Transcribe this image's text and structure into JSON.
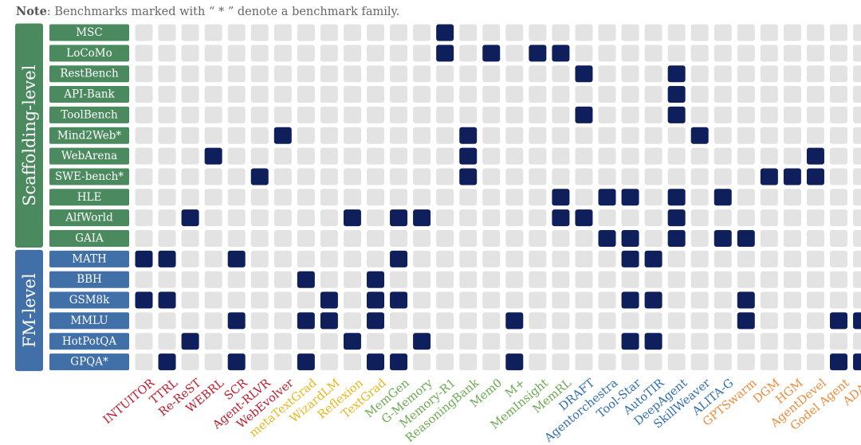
{
  "note": {
    "label": "Note",
    "text": ": Benchmarks marked with “ * ” denote a benchmark family."
  },
  "colors": {
    "cell_empty": "#e3e3e3",
    "cell_filled": "#0f1f5c",
    "group_scaffolding": "#4a8a5e",
    "group_fm": "#416fa8",
    "method_red": "#c0192a",
    "method_yellow": "#e8b618",
    "method_green": "#6aa84f",
    "method_blue": "#2f6db0",
    "method_orange": "#ee8a3c"
  },
  "chart_data": {
    "type": "heatmap",
    "groups": [
      {
        "label": "Scaffolding-level",
        "color": "#4a8a5e",
        "rows": [
          "MSC",
          "LoCoMo",
          "RestBench",
          "API-Bank",
          "ToolBench",
          "Mind2Web*",
          "WebArena",
          "SWE-bench*",
          "HLE",
          "AlfWorld",
          "GAIA"
        ]
      },
      {
        "label": "FM-level",
        "color": "#416fa8",
        "rows": [
          "MATH",
          "BBH",
          "GSM8k",
          "MMLU",
          "HotPotQA",
          "GPQA*"
        ]
      }
    ],
    "columns": [
      {
        "label": "INTUITOR",
        "color": "#c0192a"
      },
      {
        "label": "TTRL",
        "color": "#c0192a"
      },
      {
        "label": "Re-ReST",
        "color": "#c0192a"
      },
      {
        "label": "WEBRL",
        "color": "#c0192a"
      },
      {
        "label": "SCR",
        "color": "#c0192a"
      },
      {
        "label": "Agent-RLVR",
        "color": "#c0192a"
      },
      {
        "label": "WebEvolver",
        "color": "#c0192a"
      },
      {
        "label": "metaTextGrad",
        "color": "#e8b618"
      },
      {
        "label": "WizardLM",
        "color": "#e8b618"
      },
      {
        "label": "Reflexion",
        "color": "#e8b618"
      },
      {
        "label": "TextGrad",
        "color": "#e8b618"
      },
      {
        "label": "MemGen",
        "color": "#6aa84f"
      },
      {
        "label": "G-Memory",
        "color": "#6aa84f"
      },
      {
        "label": "Memory-R1",
        "color": "#6aa84f"
      },
      {
        "label": "ReasoningBank",
        "color": "#6aa84f"
      },
      {
        "label": "Mem0",
        "color": "#6aa84f"
      },
      {
        "label": "M+",
        "color": "#6aa84f"
      },
      {
        "label": "MemInsight",
        "color": "#6aa84f"
      },
      {
        "label": "MemRL",
        "color": "#6aa84f"
      },
      {
        "label": "DRAFT",
        "color": "#2f6db0"
      },
      {
        "label": "Agentorchestra",
        "color": "#2f6db0"
      },
      {
        "label": "Tool-Star",
        "color": "#2f6db0"
      },
      {
        "label": "AutoTIR",
        "color": "#2f6db0"
      },
      {
        "label": "DeepAgent",
        "color": "#2f6db0"
      },
      {
        "label": "SkillWeaver",
        "color": "#2f6db0"
      },
      {
        "label": "ALITA-G",
        "color": "#2f6db0"
      },
      {
        "label": "GPTSwarm",
        "color": "#ee8a3c"
      },
      {
        "label": "DGM",
        "color": "#ee8a3c"
      },
      {
        "label": "HGM",
        "color": "#ee8a3c"
      },
      {
        "label": "AgentDevel",
        "color": "#ee8a3c"
      },
      {
        "label": "Godel Agent",
        "color": "#ee8a3c"
      },
      {
        "label": "ADAS",
        "color": "#ee8a3c"
      }
    ],
    "filled": [
      {
        "row": "MSC",
        "cols": [
          13
        ]
      },
      {
        "row": "LoCoMo",
        "cols": [
          13,
          15,
          17,
          18
        ]
      },
      {
        "row": "RestBench",
        "cols": [
          19,
          23
        ]
      },
      {
        "row": "API-Bank",
        "cols": [
          23
        ]
      },
      {
        "row": "ToolBench",
        "cols": [
          19,
          23
        ]
      },
      {
        "row": "Mind2Web*",
        "cols": [
          6,
          14,
          24
        ]
      },
      {
        "row": "WebArena",
        "cols": [
          3,
          14,
          29
        ]
      },
      {
        "row": "SWE-bench*",
        "cols": [
          5,
          14,
          27,
          28,
          29
        ]
      },
      {
        "row": "HLE",
        "cols": [
          18,
          20,
          21,
          23,
          25
        ]
      },
      {
        "row": "AlfWorld",
        "cols": [
          2,
          9,
          11,
          12,
          18,
          19,
          23
        ]
      },
      {
        "row": "GAIA",
        "cols": [
          20,
          21,
          23,
          25,
          26
        ]
      },
      {
        "row": "MATH",
        "cols": [
          0,
          1,
          4,
          11,
          21,
          22
        ]
      },
      {
        "row": "BBH",
        "cols": [
          7,
          10
        ]
      },
      {
        "row": "GSM8k",
        "cols": [
          0,
          1,
          8,
          10,
          11,
          21,
          22,
          26
        ]
      },
      {
        "row": "MMLU",
        "cols": [
          4,
          7,
          8,
          10,
          16,
          26,
          30,
          31
        ]
      },
      {
        "row": "HotPotQA",
        "cols": [
          2,
          9,
          12,
          21,
          22
        ]
      },
      {
        "row": "GPQA*",
        "cols": [
          1,
          4,
          7,
          10,
          11,
          16,
          30,
          31
        ]
      }
    ]
  }
}
